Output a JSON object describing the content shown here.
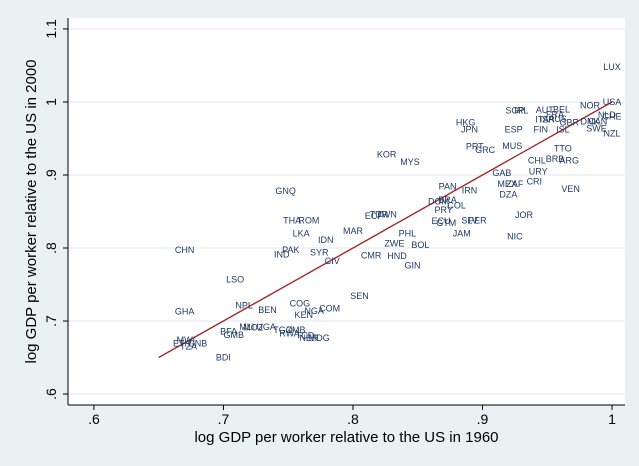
{
  "chart_data": {
    "type": "scatter",
    "title": "",
    "xlabel": "log GDP per worker relative to the US in 1960",
    "ylabel": "log GDP per worker relative to the US in 2000",
    "xlim": [
      0.58,
      1.01
    ],
    "ylim": [
      0.585,
      1.115
    ],
    "xticks": [
      0.6,
      0.7,
      0.8,
      0.9,
      1.0
    ],
    "xtick_labels": [
      ".6",
      ".7",
      ".8",
      ".9",
      "1"
    ],
    "yticks": [
      0.6,
      0.7,
      0.8,
      0.9,
      1.0,
      1.1
    ],
    "ytick_labels": [
      ".6",
      ".7",
      ".8",
      ".9",
      "1",
      "1.1"
    ],
    "grid": "horizontal",
    "plot_background": "#ffffff",
    "outer_background": "#eaf1f3",
    "label_color": "#1f3a66",
    "fit_line_color": "#a52a2a",
    "fit_line": [
      [
        0.65,
        0.65
      ],
      [
        1.0,
        1.0
      ]
    ],
    "points": [
      {
        "label": "LUX",
        "x": 1.0,
        "y": 1.048
      },
      {
        "label": "USA",
        "x": 1.0,
        "y": 1.0
      },
      {
        "label": "CHE",
        "x": 1.0,
        "y": 0.98
      },
      {
        "label": "NZL",
        "x": 1.0,
        "y": 0.957
      },
      {
        "label": "NOR",
        "x": 0.983,
        "y": 0.995
      },
      {
        "label": "NLD",
        "x": 0.996,
        "y": 0.982
      },
      {
        "label": "DNK",
        "x": 0.983,
        "y": 0.973
      },
      {
        "label": "CAN",
        "x": 0.989,
        "y": 0.973
      },
      {
        "label": "SWE",
        "x": 0.988,
        "y": 0.964
      },
      {
        "label": "GBR",
        "x": 0.967,
        "y": 0.972
      },
      {
        "label": "BEL",
        "x": 0.961,
        "y": 0.99
      },
      {
        "label": "AUT",
        "x": 0.948,
        "y": 0.989
      },
      {
        "label": "FRA",
        "x": 0.956,
        "y": 0.983
      },
      {
        "label": "ITA",
        "x": 0.946,
        "y": 0.976
      },
      {
        "label": "ISR",
        "x": 0.95,
        "y": 0.976
      },
      {
        "label": "AUS",
        "x": 0.958,
        "y": 0.977
      },
      {
        "label": "FIN",
        "x": 0.945,
        "y": 0.962
      },
      {
        "label": "ISL",
        "x": 0.962,
        "y": 0.962
      },
      {
        "label": "SGP",
        "x": 0.925,
        "y": 0.988
      },
      {
        "label": "IRL",
        "x": 0.93,
        "y": 0.988
      },
      {
        "label": "HKG",
        "x": 0.887,
        "y": 0.972
      },
      {
        "label": "JPN",
        "x": 0.89,
        "y": 0.962
      },
      {
        "label": "ESP",
        "x": 0.924,
        "y": 0.962
      },
      {
        "label": "MUS",
        "x": 0.923,
        "y": 0.94
      },
      {
        "label": "PRT",
        "x": 0.894,
        "y": 0.939
      },
      {
        "label": "GRC",
        "x": 0.902,
        "y": 0.934
      },
      {
        "label": "TTO",
        "x": 0.962,
        "y": 0.936
      },
      {
        "label": "BRB",
        "x": 0.956,
        "y": 0.922
      },
      {
        "label": "ARG",
        "x": 0.967,
        "y": 0.92
      },
      {
        "label": "CHL",
        "x": 0.942,
        "y": 0.92
      },
      {
        "label": "URY",
        "x": 0.943,
        "y": 0.905
      },
      {
        "label": "GAB",
        "x": 0.915,
        "y": 0.903
      },
      {
        "label": "MEX",
        "x": 0.919,
        "y": 0.888
      },
      {
        "label": "ZAF",
        "x": 0.925,
        "y": 0.888
      },
      {
        "label": "CRI",
        "x": 0.94,
        "y": 0.891
      },
      {
        "label": "VEN",
        "x": 0.968,
        "y": 0.881
      },
      {
        "label": "DZA",
        "x": 0.92,
        "y": 0.873
      },
      {
        "label": "KOR",
        "x": 0.826,
        "y": 0.928
      },
      {
        "label": "MYS",
        "x": 0.844,
        "y": 0.918
      },
      {
        "label": "PAN",
        "x": 0.873,
        "y": 0.884
      },
      {
        "label": "IRN",
        "x": 0.89,
        "y": 0.879
      },
      {
        "label": "DOM",
        "x": 0.866,
        "y": 0.864
      },
      {
        "label": "BRA",
        "x": 0.873,
        "y": 0.866
      },
      {
        "label": "COL",
        "x": 0.88,
        "y": 0.858
      },
      {
        "label": "PRY",
        "x": 0.87,
        "y": 0.852
      },
      {
        "label": "ECU",
        "x": 0.868,
        "y": 0.837
      },
      {
        "label": "GTM",
        "x": 0.872,
        "y": 0.834
      },
      {
        "label": "SLV",
        "x": 0.89,
        "y": 0.838
      },
      {
        "label": "PER",
        "x": 0.896,
        "y": 0.838
      },
      {
        "label": "JOR",
        "x": 0.932,
        "y": 0.845
      },
      {
        "label": "JAM",
        "x": 0.884,
        "y": 0.82
      },
      {
        "label": "NIC",
        "x": 0.925,
        "y": 0.816
      },
      {
        "label": "GNQ",
        "x": 0.748,
        "y": 0.878
      },
      {
        "label": "THA",
        "x": 0.753,
        "y": 0.838
      },
      {
        "label": "ROM",
        "x": 0.766,
        "y": 0.838
      },
      {
        "label": "ECF",
        "x": 0.816,
        "y": 0.844
      },
      {
        "label": "TUR",
        "x": 0.82,
        "y": 0.846
      },
      {
        "label": "TWN",
        "x": 0.826,
        "y": 0.846
      },
      {
        "label": "MAR",
        "x": 0.8,
        "y": 0.823
      },
      {
        "label": "PHL",
        "x": 0.842,
        "y": 0.82
      },
      {
        "label": "LKA",
        "x": 0.76,
        "y": 0.82
      },
      {
        "label": "IDN",
        "x": 0.779,
        "y": 0.811
      },
      {
        "label": "ZWE",
        "x": 0.832,
        "y": 0.806
      },
      {
        "label": "BOL",
        "x": 0.852,
        "y": 0.804
      },
      {
        "label": "PAK",
        "x": 0.752,
        "y": 0.797
      },
      {
        "label": "IND",
        "x": 0.745,
        "y": 0.791
      },
      {
        "label": "SYR",
        "x": 0.774,
        "y": 0.794
      },
      {
        "label": "CMR",
        "x": 0.814,
        "y": 0.79
      },
      {
        "label": "HND",
        "x": 0.834,
        "y": 0.789
      },
      {
        "label": "CIV",
        "x": 0.784,
        "y": 0.782
      },
      {
        "label": "GIN",
        "x": 0.846,
        "y": 0.776
      },
      {
        "label": "CHN",
        "x": 0.67,
        "y": 0.797
      },
      {
        "label": "LSO",
        "x": 0.709,
        "y": 0.757
      },
      {
        "label": "SEN",
        "x": 0.805,
        "y": 0.734
      },
      {
        "label": "COG",
        "x": 0.759,
        "y": 0.724
      },
      {
        "label": "NPL",
        "x": 0.716,
        "y": 0.721
      },
      {
        "label": "BEN",
        "x": 0.734,
        "y": 0.715
      },
      {
        "label": "NGA",
        "x": 0.77,
        "y": 0.714
      },
      {
        "label": "COM",
        "x": 0.782,
        "y": 0.717
      },
      {
        "label": "KEN",
        "x": 0.762,
        "y": 0.708
      },
      {
        "label": "GHA",
        "x": 0.67,
        "y": 0.713
      },
      {
        "label": "MLI",
        "x": 0.718,
        "y": 0.692
      },
      {
        "label": "MOZ",
        "x": 0.723,
        "y": 0.691
      },
      {
        "label": "UGA",
        "x": 0.733,
        "y": 0.692
      },
      {
        "label": "TGO",
        "x": 0.746,
        "y": 0.688
      },
      {
        "label": "ZMB",
        "x": 0.756,
        "y": 0.688
      },
      {
        "label": "BFA",
        "x": 0.704,
        "y": 0.686
      },
      {
        "label": "GMB",
        "x": 0.708,
        "y": 0.681
      },
      {
        "label": "RWA",
        "x": 0.751,
        "y": 0.683
      },
      {
        "label": "TCD",
        "x": 0.763,
        "y": 0.68
      },
      {
        "label": "NER",
        "x": 0.766,
        "y": 0.677
      },
      {
        "label": "MDG",
        "x": 0.774,
        "y": 0.677
      },
      {
        "label": "MWI",
        "x": 0.671,
        "y": 0.674
      },
      {
        "label": "ETH",
        "x": 0.668,
        "y": 0.669
      },
      {
        "label": "GNB",
        "x": 0.68,
        "y": 0.669
      },
      {
        "label": "TZA",
        "x": 0.673,
        "y": 0.665
      },
      {
        "label": "BDI",
        "x": 0.7,
        "y": 0.65
      }
    ]
  }
}
